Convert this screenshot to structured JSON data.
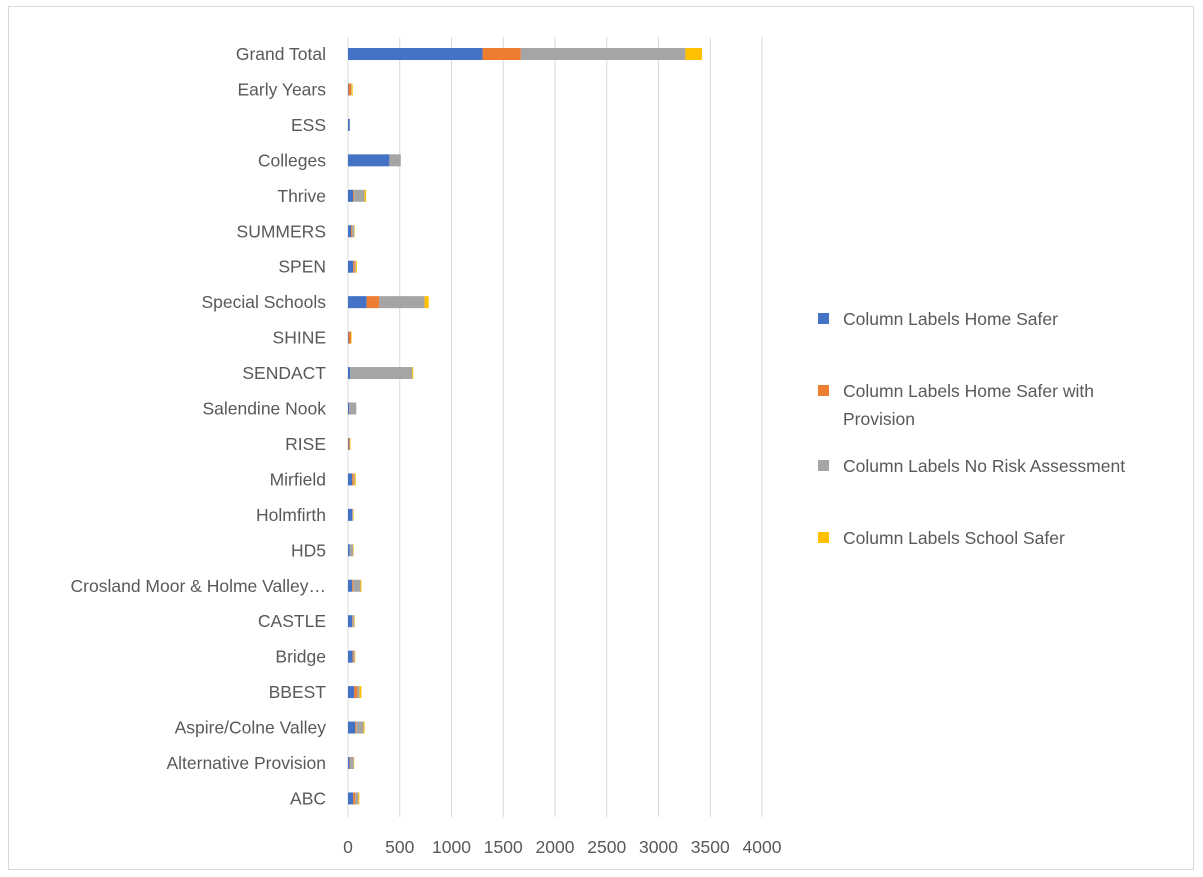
{
  "chart_data": {
    "type": "bar",
    "orientation": "horizontal",
    "stacked": true,
    "title": "",
    "xlabel": "",
    "ylabel": "",
    "xlim": [
      0,
      4000
    ],
    "x_ticks": [
      0,
      500,
      1000,
      1500,
      2000,
      2500,
      3000,
      3500,
      4000
    ],
    "grid": true,
    "legend_position": "right",
    "categories": [
      "Grand Total",
      "Early Years",
      "ESS",
      "Colleges",
      "Thrive",
      "SUMMERS",
      "SPEN",
      "Special Schools",
      "SHINE",
      "SENDACT",
      "Salendine Nook",
      "RISE",
      "Mirfield",
      "Holmfirth",
      "HD5",
      "Crosland Moor & Holme Valley…",
      "CASTLE",
      "Bridge",
      "BBEST",
      "Aspire/Colne Valley",
      "Alternative Provision",
      "ABC"
    ],
    "series": [
      {
        "name": "Column Labels Home Safer",
        "color": "#4472c4",
        "legend_lines": [
          "Column Labels Home Safer"
        ],
        "values": [
          1300,
          5,
          15,
          400,
          50,
          30,
          50,
          180,
          5,
          20,
          10,
          5,
          40,
          40,
          15,
          40,
          40,
          45,
          60,
          70,
          15,
          50
        ]
      },
      {
        "name": "Column Labels Home Safer with Provision",
        "color": "#ed7d31",
        "legend_lines": [
          "Column Labels Home Safer with",
          "Provision"
        ],
        "values": [
          370,
          25,
          0,
          0,
          10,
          10,
          15,
          120,
          25,
          0,
          0,
          10,
          15,
          0,
          0,
          10,
          5,
          10,
          30,
          10,
          5,
          20
        ]
      },
      {
        "name": "Column Labels No Risk Assessment",
        "color": "#a5a5a5",
        "legend_lines": [
          "Column Labels No Risk Assessment"
        ],
        "values": [
          1590,
          5,
          5,
          110,
          100,
          20,
          10,
          440,
          0,
          600,
          70,
          5,
          10,
          10,
          35,
          70,
          15,
          10,
          20,
          70,
          35,
          30
        ]
      },
      {
        "name": "Column Labels School Safer",
        "color": "#ffc000",
        "legend_lines": [
          "Column Labels School Safer"
        ],
        "values": [
          160,
          10,
          0,
          0,
          15,
          5,
          10,
          40,
          5,
          10,
          0,
          5,
          10,
          5,
          5,
          10,
          5,
          5,
          20,
          10,
          5,
          10
        ]
      }
    ]
  }
}
